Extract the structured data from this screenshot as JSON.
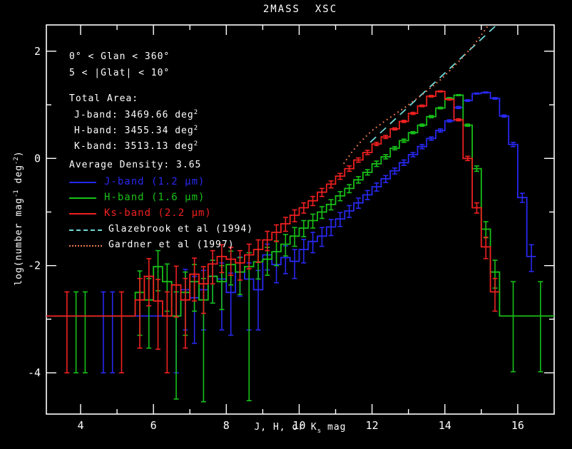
{
  "header": {
    "title": "2MASS  XSC"
  },
  "annotations": {
    "glon_range": "0° < Glan < 360°",
    "glat_range": "5 < |Glat| < 10°",
    "total_area_title": "Total Area:",
    "areas": [
      {
        "text": "J-band: 3469.66 deg",
        "sup": "2"
      },
      {
        "text": "H-band: 3455.34 deg",
        "sup": "2"
      },
      {
        "text": "K-band: 3513.13 deg",
        "sup": "2"
      }
    ],
    "avg_density": "Average Density: 3.65"
  },
  "axes": {
    "xlabel": {
      "p1": "J, H, or K",
      "sub": "s",
      "p2": " mag"
    },
    "ylabel": {
      "p1": "log(number mag",
      "s1": "-1",
      "p2": " deg",
      "s2": "-2",
      "p3": ")"
    }
  },
  "chart_data": {
    "type": "line",
    "subtype": "step-histogram with error bars",
    "title": "2MASS XSC",
    "xlabel": "J, H, or Ks mag",
    "ylabel": "log(number mag^-1 deg^-2)",
    "xlim": [
      3.06,
      17.0
    ],
    "ylim": [
      -4.77,
      2.49
    ],
    "grid": false,
    "legend_position": "upper-left text block",
    "background": "#000000",
    "axis_color": "#ffffff",
    "x_major_ticks": [
      {
        "v": 4,
        "label": "4"
      },
      {
        "v": 6,
        "label": "6"
      },
      {
        "v": 8,
        "label": "8"
      },
      {
        "v": 10,
        "label": "10"
      },
      {
        "v": 12,
        "label": "12"
      },
      {
        "v": 14,
        "label": "14"
      },
      {
        "v": 16,
        "label": "16"
      }
    ],
    "x_minor_ticks": [
      5,
      7,
      9,
      11,
      13,
      15
    ],
    "y_major_ticks": [
      {
        "v": 2,
        "label": "2"
      },
      {
        "v": 0,
        "label": "0"
      },
      {
        "v": -2,
        "label": "-2"
      },
      {
        "v": -4,
        "label": "-4"
      }
    ],
    "y_minor_ticks": [
      1,
      -1,
      -3
    ],
    "bin_half_width": 0.125,
    "series": [
      {
        "name": "J-band",
        "legend": "J-band (1.2 μm)",
        "color": "#2828f0",
        "bins": [
          [
            3.125,
            -2.94,
            0,
            0
          ],
          [
            3.375,
            -2.94,
            0,
            0
          ],
          [
            3.625,
            -2.94,
            0,
            0
          ],
          [
            3.875,
            -2.94,
            0,
            0
          ],
          [
            4.125,
            -2.94,
            0,
            0
          ],
          [
            4.375,
            -2.94,
            0,
            0
          ],
          [
            4.625,
            -2.94,
            1.06,
            0.45
          ],
          [
            4.875,
            -2.94,
            1.06,
            0.45
          ],
          [
            5.125,
            -2.94,
            0,
            0
          ],
          [
            5.375,
            -2.94,
            0,
            0
          ],
          [
            5.625,
            -2.94,
            0,
            0
          ],
          [
            5.875,
            -2.94,
            0,
            0
          ],
          [
            6.125,
            -2.94,
            0,
            0
          ],
          [
            6.375,
            -2.94,
            0,
            0
          ],
          [
            6.625,
            -2.94,
            1.06,
            0.45
          ],
          [
            6.875,
            -2.45,
            0.75,
            0.38
          ],
          [
            7.125,
            -2.6,
            0.85,
            0.4
          ],
          [
            7.375,
            -2.45,
            0.75,
            0.36
          ],
          [
            7.625,
            -2.2,
            0.5,
            0.3
          ],
          [
            7.875,
            -2.25,
            0.95,
            0.3
          ],
          [
            8.125,
            -2.5,
            0.8,
            0.36
          ],
          [
            8.375,
            -2.12,
            0.45,
            0.28
          ],
          [
            8.625,
            -2.25,
            0.95,
            0.3
          ],
          [
            8.875,
            -2.45,
            0.75,
            0.36
          ],
          [
            9.125,
            -1.8,
            0.28,
            0.2
          ],
          [
            9.375,
            -1.98,
            0.34,
            0.24
          ],
          [
            9.625,
            -1.85,
            0.3,
            0.22
          ],
          [
            9.875,
            -1.92,
            0.32,
            0.22
          ],
          [
            10.125,
            -1.7,
            0.25,
            0.19
          ],
          [
            10.375,
            -1.55,
            0.21,
            0.17
          ],
          [
            10.625,
            -1.45,
            0.19,
            0.16
          ],
          [
            10.875,
            -1.28,
            0.16,
            0.14
          ],
          [
            11.125,
            -1.13,
            0.14,
            0.12
          ],
          [
            11.375,
            -0.98,
            0.12,
            0.1
          ],
          [
            11.625,
            -0.83,
            0.1,
            0.09
          ],
          [
            11.875,
            -0.68,
            0.09,
            0.08
          ],
          [
            12.125,
            -0.53,
            0.08,
            0.07
          ],
          [
            12.375,
            -0.38,
            0.07,
            0.06
          ],
          [
            12.625,
            -0.23,
            0.06,
            0.05
          ],
          [
            12.875,
            -0.08,
            0.05,
            0.05
          ],
          [
            13.125,
            0.07,
            0.04,
            0.04
          ],
          [
            13.375,
            0.22,
            0.04,
            0.04
          ],
          [
            13.625,
            0.37,
            0.03,
            0.03
          ],
          [
            13.875,
            0.52,
            0.03,
            0.03
          ],
          [
            14.125,
            0.7,
            0.02,
            0.02
          ],
          [
            14.375,
            0.95,
            0.02,
            0.02
          ],
          [
            14.625,
            1.08,
            0.015,
            0.015
          ],
          [
            14.875,
            1.21,
            0.01,
            0.01
          ],
          [
            15.125,
            1.23,
            0.01,
            0.01
          ],
          [
            15.375,
            1.12,
            0.015,
            0.015
          ],
          [
            15.625,
            0.79,
            0.02,
            0.02
          ],
          [
            15.875,
            0.26,
            0.04,
            0.04
          ],
          [
            16.125,
            -0.73,
            0.09,
            0.08
          ],
          [
            16.375,
            -1.83,
            0.28,
            0.22
          ]
        ]
      },
      {
        "name": "H-band",
        "legend": "H-band (1.6 μm)",
        "color": "#18c018",
        "bins": [
          [
            3.375,
            -2.94,
            0,
            0
          ],
          [
            3.625,
            -2.94,
            0,
            0
          ],
          [
            3.875,
            -2.94,
            1.06,
            0.45
          ],
          [
            4.125,
            -2.94,
            1.06,
            0.45
          ],
          [
            4.375,
            -2.94,
            0,
            0
          ],
          [
            4.625,
            -2.94,
            0,
            0
          ],
          [
            4.875,
            -2.94,
            0,
            0
          ],
          [
            5.125,
            -2.94,
            0,
            0
          ],
          [
            5.375,
            -2.94,
            0,
            0
          ],
          [
            5.625,
            -2.5,
            0.8,
            0.4
          ],
          [
            5.875,
            -2.64,
            0.9,
            0.4
          ],
          [
            6.125,
            -2.02,
            0.45,
            0.3
          ],
          [
            6.375,
            -2.3,
            0.55,
            0.33
          ],
          [
            6.625,
            -2.94,
            1.55,
            0.45
          ],
          [
            6.875,
            -2.5,
            0.8,
            0.38
          ],
          [
            7.125,
            -2.3,
            0.55,
            0.32
          ],
          [
            7.375,
            -2.64,
            1.9,
            0.4
          ],
          [
            7.625,
            -2.2,
            0.5,
            0.3
          ],
          [
            7.875,
            -2.3,
            0.52,
            0.3
          ],
          [
            8.125,
            -1.98,
            0.38,
            0.25
          ],
          [
            8.375,
            -2.12,
            0.42,
            0.27
          ],
          [
            8.625,
            -2.02,
            2.5,
            0.26
          ],
          [
            8.875,
            -1.93,
            0.32,
            0.23
          ],
          [
            9.125,
            -1.88,
            0.3,
            0.22
          ],
          [
            9.375,
            -1.74,
            0.26,
            0.2
          ],
          [
            9.625,
            -1.6,
            0.22,
            0.18
          ],
          [
            9.875,
            -1.45,
            0.19,
            0.16
          ],
          [
            10.125,
            -1.3,
            0.16,
            0.14
          ],
          [
            10.375,
            -1.16,
            0.14,
            0.12
          ],
          [
            10.625,
            -1.0,
            0.12,
            0.1
          ],
          [
            10.875,
            -0.86,
            0.1,
            0.09
          ],
          [
            11.125,
            -0.7,
            0.09,
            0.08
          ],
          [
            11.375,
            -0.56,
            0.08,
            0.07
          ],
          [
            11.625,
            -0.4,
            0.06,
            0.06
          ],
          [
            11.875,
            -0.26,
            0.05,
            0.05
          ],
          [
            12.125,
            -0.1,
            0.05,
            0.05
          ],
          [
            12.375,
            0.03,
            0.04,
            0.04
          ],
          [
            12.625,
            0.19,
            0.03,
            0.03
          ],
          [
            12.875,
            0.33,
            0.03,
            0.03
          ],
          [
            13.125,
            0.48,
            0.02,
            0.02
          ],
          [
            13.375,
            0.62,
            0.02,
            0.02
          ],
          [
            13.625,
            0.78,
            0.02,
            0.02
          ],
          [
            13.875,
            0.94,
            0.015,
            0.015
          ],
          [
            14.125,
            1.12,
            0.015,
            0.015
          ],
          [
            14.375,
            1.18,
            0.01,
            0.01
          ],
          [
            14.625,
            0.62,
            0.02,
            0.02
          ],
          [
            14.875,
            -0.19,
            0.05,
            0.05
          ],
          [
            15.125,
            -1.32,
            0.16,
            0.14
          ],
          [
            15.375,
            -2.12,
            0.3,
            0.22
          ],
          [
            15.625,
            -2.94,
            0,
            0
          ],
          [
            15.875,
            -2.94,
            1.04,
            0.64
          ],
          [
            16.125,
            -2.94,
            0,
            0
          ],
          [
            16.375,
            -2.94,
            0,
            0
          ],
          [
            16.625,
            -2.94,
            1.04,
            0.64
          ],
          [
            16.875,
            -2.94,
            0,
            0
          ]
        ]
      },
      {
        "name": "Ks-band",
        "legend": "Ks-band (2.2 μm)",
        "color": "#f02020",
        "bins": [
          [
            3.125,
            -2.94,
            0,
            0
          ],
          [
            3.375,
            -2.94,
            0,
            0
          ],
          [
            3.625,
            -2.94,
            1.06,
            0.45
          ],
          [
            3.875,
            -2.94,
            0,
            0
          ],
          [
            4.125,
            -2.94,
            0,
            0
          ],
          [
            4.375,
            -2.94,
            0,
            0
          ],
          [
            4.625,
            -2.94,
            0,
            0
          ],
          [
            4.875,
            -2.94,
            0,
            0
          ],
          [
            5.125,
            -2.94,
            1.06,
            0.45
          ],
          [
            5.375,
            -2.94,
            0,
            0
          ],
          [
            5.625,
            -2.64,
            0.9,
            0.4
          ],
          [
            5.875,
            -2.2,
            0.55,
            0.33
          ],
          [
            6.125,
            -2.66,
            0.9,
            0.4
          ],
          [
            6.375,
            -2.94,
            1.06,
            0.45
          ],
          [
            6.625,
            -2.36,
            0.6,
            0.35
          ],
          [
            6.875,
            -2.64,
            0.9,
            0.4
          ],
          [
            7.125,
            -2.16,
            0.5,
            0.3
          ],
          [
            7.375,
            -2.34,
            0.55,
            0.32
          ],
          [
            7.625,
            -1.97,
            0.37,
            0.25
          ],
          [
            7.875,
            -1.83,
            0.3,
            0.22
          ],
          [
            8.125,
            -1.88,
            0.3,
            0.22
          ],
          [
            8.375,
            -1.95,
            0.32,
            0.23
          ],
          [
            8.625,
            -1.8,
            0.26,
            0.2
          ],
          [
            8.875,
            -1.7,
            0.24,
            0.18
          ],
          [
            9.125,
            -1.52,
            0.2,
            0.16
          ],
          [
            9.375,
            -1.38,
            0.17,
            0.14
          ],
          [
            9.625,
            -1.22,
            0.14,
            0.12
          ],
          [
            9.875,
            -1.06,
            0.12,
            0.1
          ],
          [
            10.125,
            -0.92,
            0.1,
            0.09
          ],
          [
            10.375,
            -0.79,
            0.09,
            0.08
          ],
          [
            10.625,
            -0.63,
            0.08,
            0.07
          ],
          [
            10.875,
            -0.48,
            0.07,
            0.06
          ],
          [
            11.125,
            -0.33,
            0.06,
            0.05
          ],
          [
            11.375,
            -0.19,
            0.05,
            0.05
          ],
          [
            11.625,
            -0.03,
            0.04,
            0.04
          ],
          [
            11.875,
            0.11,
            0.04,
            0.04
          ],
          [
            12.125,
            0.27,
            0.03,
            0.03
          ],
          [
            12.375,
            0.4,
            0.03,
            0.03
          ],
          [
            12.625,
            0.55,
            0.02,
            0.02
          ],
          [
            12.875,
            0.69,
            0.02,
            0.02
          ],
          [
            13.125,
            0.84,
            0.02,
            0.02
          ],
          [
            13.375,
            0.98,
            0.015,
            0.015
          ],
          [
            13.625,
            1.16,
            0.015,
            0.015
          ],
          [
            13.875,
            1.25,
            0.01,
            0.01
          ],
          [
            14.125,
            1.1,
            0.01,
            0.01
          ],
          [
            14.375,
            0.72,
            0.02,
            0.02
          ],
          [
            14.625,
            0.0,
            0.04,
            0.04
          ],
          [
            14.875,
            -0.92,
            0.1,
            0.09
          ],
          [
            15.125,
            -1.65,
            0.22,
            0.18
          ],
          [
            15.375,
            -2.49,
            0.36,
            0.25
          ]
        ]
      }
    ],
    "models": [
      {
        "name": "Glazebrook et al (1994)",
        "color": "#70d8d8",
        "style": "dashed",
        "points": [
          [
            11.95,
            0.3
          ],
          [
            15.42,
            2.49
          ]
        ]
      },
      {
        "name": "Gardner et al (1997)",
        "color": "#ea7a4e",
        "style": "dotted",
        "points": [
          [
            11.22,
            -0.1
          ],
          [
            11.45,
            0.12
          ],
          [
            11.7,
            0.32
          ],
          [
            12.0,
            0.52
          ],
          [
            12.4,
            0.72
          ],
          [
            12.9,
            0.95
          ],
          [
            13.4,
            1.2
          ],
          [
            13.9,
            1.48
          ],
          [
            14.4,
            1.82
          ],
          [
            14.8,
            2.12
          ],
          [
            15.05,
            2.35
          ],
          [
            15.2,
            2.49
          ]
        ]
      }
    ]
  }
}
